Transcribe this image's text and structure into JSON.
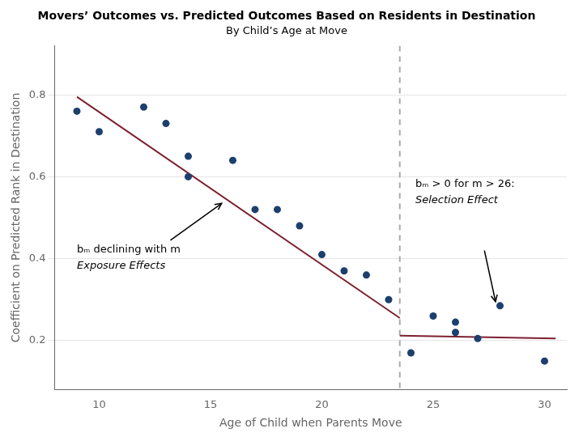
{
  "chart_data": {
    "type": "scatter",
    "title": "Movers’ Outcomes vs. Predicted Outcomes Based on Residents in Destination",
    "subtitle": "By Child’s Age at Move",
    "xlabel": "Age of Child when Parents Move",
    "ylabel": "Coefficient on Predicted Rank in Destination",
    "xlim": [
      8,
      31
    ],
    "ylim": [
      0.08,
      0.92
    ],
    "xticks": [
      10,
      15,
      20,
      25,
      30
    ],
    "yticks": [
      0.2,
      0.4,
      0.6,
      0.8
    ],
    "grid": "y",
    "series": [
      {
        "type": "scatter",
        "color": "#1c3f6e",
        "x": [
          9,
          10,
          12,
          13,
          14,
          14,
          16,
          17,
          18,
          19,
          20,
          21,
          22,
          23
        ],
        "values": [
          0.76,
          0.71,
          0.77,
          0.73,
          0.65,
          0.6,
          0.64,
          0.52,
          0.52,
          0.48,
          0.41,
          0.37,
          0.36,
          0.3
        ]
      },
      {
        "type": "scatter",
        "color": "#1c3f6e",
        "x": [
          24,
          25,
          26,
          26,
          27,
          28,
          30
        ],
        "values": [
          0.17,
          0.26,
          0.22,
          0.245,
          0.205,
          0.285,
          0.15
        ]
      },
      {
        "type": "line",
        "color": "#7d2030",
        "x": [
          9,
          23.5
        ],
        "values": [
          0.795,
          0.255
        ]
      },
      {
        "type": "line",
        "color": "#7d2030",
        "x": [
          23.5,
          30.5
        ],
        "values": [
          0.212,
          0.205
        ]
      }
    ],
    "vlines": [
      {
        "x": 23.5,
        "color": "#aaaaaa",
        "line_style": "dashed"
      }
    ],
    "annotations": [
      {
        "text": [
          "bₘ declining with m",
          "Exposure Effects"
        ],
        "x": 9.0,
        "y": [
          0.415,
          0.375
        ],
        "arrow_from": [
          13.2,
          0.445
        ],
        "arrow_to": [
          15.5,
          0.535
        ]
      },
      {
        "text": [
          "bₘ > 0 for m > 26:",
          "Selection Effect"
        ],
        "x": 24.2,
        "y": [
          0.575,
          0.535
        ],
        "arrow_from": [
          27.3,
          0.42
        ],
        "arrow_to": [
          27.8,
          0.295
        ]
      }
    ]
  }
}
